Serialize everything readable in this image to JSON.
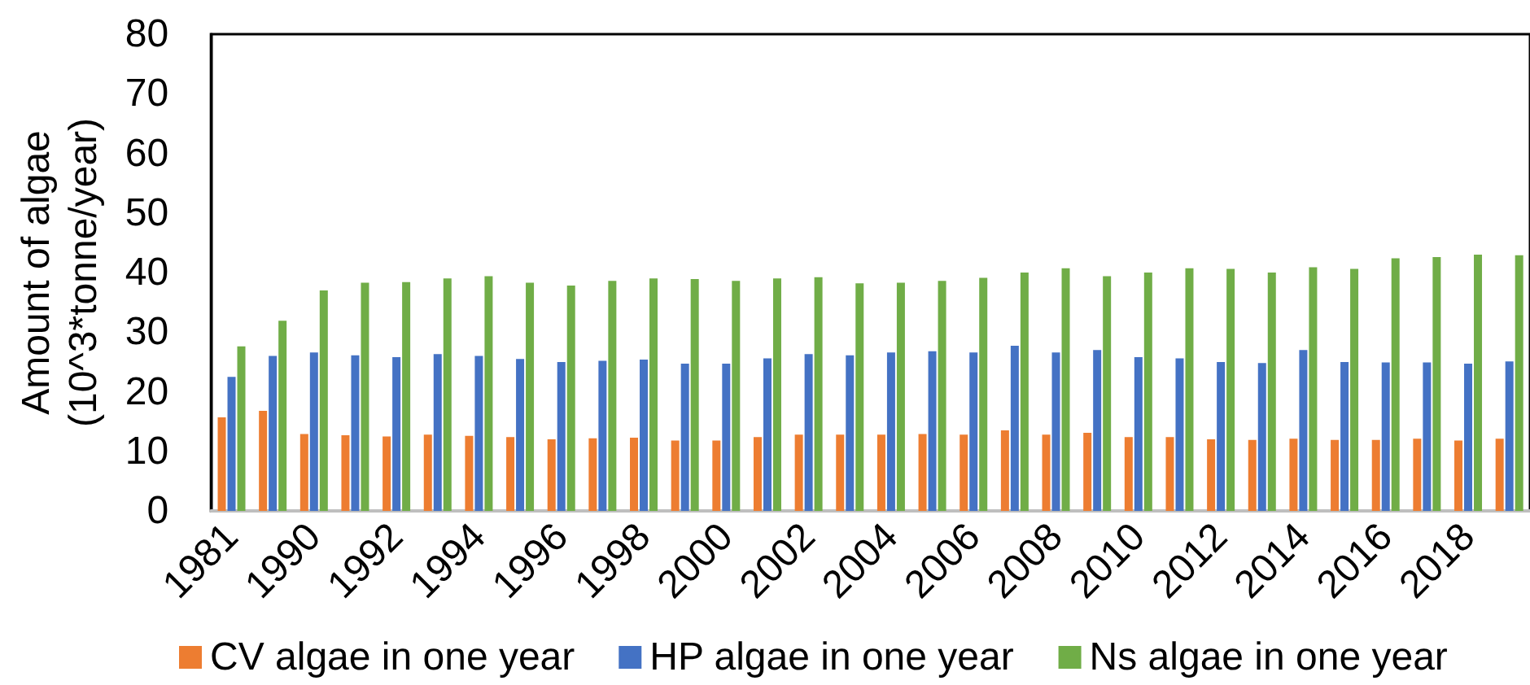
{
  "chart_data": {
    "type": "bar",
    "ylabel": "Amount of algae (10^3*tonne/year)",
    "categories": [
      "1981",
      null,
      "1990",
      null,
      "1992",
      null,
      "1994",
      null,
      "1996",
      null,
      "1998",
      null,
      "2000",
      null,
      "2002",
      null,
      "2004",
      null,
      "2006",
      null,
      "2008",
      null,
      "2010",
      null,
      "2012",
      null,
      "2014",
      null,
      "2016",
      null,
      "2018",
      null
    ],
    "series": [
      {
        "name": "CV algae in one year",
        "color": "#ed7d31",
        "values": [
          15.7,
          16.8,
          12.9,
          12.7,
          12.5,
          12.8,
          12.6,
          12.4,
          12.0,
          12.2,
          12.3,
          11.8,
          11.8,
          12.4,
          12.8,
          12.8,
          12.8,
          12.9,
          12.8,
          13.5,
          12.8,
          13.1,
          12.4,
          12.4,
          12.0,
          11.9,
          12.1,
          11.9,
          11.9,
          12.1,
          11.8,
          12.1
        ]
      },
      {
        "name": "HP algae in one year",
        "color": "#4472c4",
        "values": [
          22.5,
          26.0,
          26.6,
          26.1,
          25.8,
          26.3,
          26.0,
          25.5,
          25.0,
          25.2,
          25.4,
          24.7,
          24.7,
          25.6,
          26.3,
          26.1,
          26.6,
          26.8,
          26.6,
          27.7,
          26.6,
          27.0,
          25.8,
          25.6,
          25.0,
          24.8,
          27.0,
          25.0,
          24.9,
          24.9,
          24.7,
          25.1
        ]
      },
      {
        "name": "Ns algae in one year",
        "color": "#70ad47",
        "values": [
          27.6,
          31.9,
          37.0,
          38.3,
          38.4,
          39.0,
          39.4,
          38.3,
          37.8,
          38.6,
          39.0,
          38.9,
          38.6,
          39.0,
          39.2,
          38.2,
          38.3,
          38.6,
          39.1,
          40.0,
          40.7,
          39.4,
          40.0,
          40.7,
          40.6,
          40.0,
          40.9,
          40.6,
          42.4,
          42.6,
          43.0,
          42.9
        ]
      }
    ],
    "ylim": [
      0,
      80
    ],
    "yticks": [
      0,
      10,
      20,
      30,
      40,
      50,
      60,
      70,
      80
    ],
    "legend": "bottom"
  }
}
